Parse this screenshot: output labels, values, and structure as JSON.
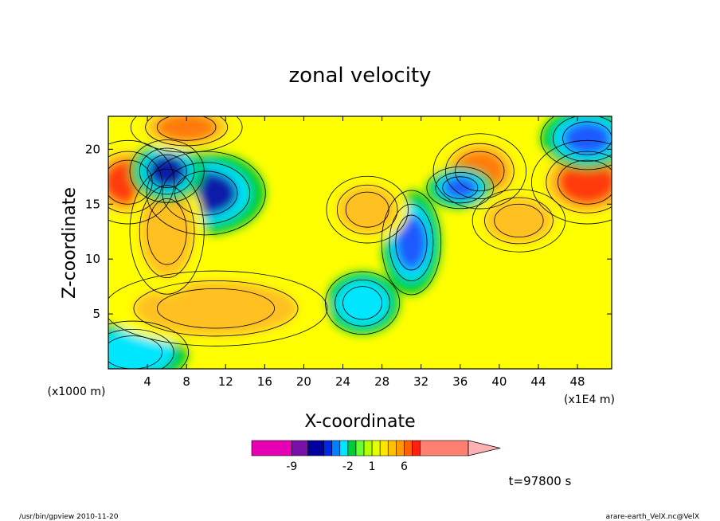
{
  "chart_data": {
    "type": "heatmap",
    "title": "zonal velocity",
    "xlabel": "X-coordinate",
    "ylabel": "Z-coordinate",
    "x_unit_label": "(x1E4 m)",
    "z_unit_label": "(x1000 m)",
    "xlim": [
      0,
      51.5
    ],
    "ylim": [
      0,
      23
    ],
    "x_ticks": [
      4,
      8,
      12,
      16,
      20,
      24,
      28,
      32,
      36,
      40,
      44,
      48
    ],
    "y_ticks": [
      5,
      10,
      15,
      20
    ],
    "time_label": "t=97800 s",
    "colorbar": {
      "tick_labels": [
        "-9",
        "-2",
        "1",
        "6"
      ],
      "levels": [
        -15,
        -9,
        -7,
        -5,
        -4,
        -3,
        -2,
        -1,
        0,
        1,
        2,
        3,
        4,
        6,
        8,
        15
      ],
      "colors": [
        "#e600b4",
        "#7a10a8",
        "#0000a0",
        "#0028e6",
        "#0080ff",
        "#00e6ff",
        "#00cc33",
        "#66ff33",
        "#b4ff00",
        "#e6ff00",
        "#ffe600",
        "#ffc000",
        "#ff9a00",
        "#ff6000",
        "#ff2010",
        "#ff8070",
        "#ffb0b0"
      ]
    },
    "field_colors": {
      "strong_negative": "#0a1ea8",
      "negative": "#1e5aff",
      "weak_negative": "#00e6ff",
      "near_zero_negative": "#00cc33",
      "near_zero_positive": "#ffff00",
      "positive": "#ffc020",
      "strong_positive": "#ff7a10",
      "max_positive": "#ff3a10"
    },
    "features": [
      {
        "x": 10,
        "z": 16,
        "u": -8,
        "extent_x": 3.2,
        "extent_z": 2.0
      },
      {
        "x": 31,
        "z": 11.5,
        "u": -5,
        "extent_x": 1.6,
        "extent_z": 2.5
      },
      {
        "x": 26,
        "z": 6,
        "u": -3,
        "extent_x": 2.0,
        "extent_z": 1.5
      },
      {
        "x": 2.5,
        "z": 1.5,
        "u": -3,
        "extent_x": 3.0,
        "extent_z": 1.5
      },
      {
        "x": 2,
        "z": 17,
        "u": 6,
        "extent_x": 2.5,
        "extent_z": 2.0
      },
      {
        "x": 49,
        "z": 17,
        "u": 6,
        "extent_x": 3.0,
        "extent_z": 2.0
      },
      {
        "x": 26.5,
        "z": 14.5,
        "u": 3,
        "extent_x": 2.2,
        "extent_z": 1.6
      },
      {
        "x": 11,
        "z": 5.5,
        "u": 3,
        "extent_x": 6.0,
        "extent_z": 1.8
      },
      {
        "x": 6,
        "z": 12.5,
        "u": 3,
        "extent_x": 2.0,
        "extent_z": 3.0
      },
      {
        "x": 38,
        "z": 18,
        "u": 4,
        "extent_x": 2.5,
        "extent_z": 1.8
      },
      {
        "x": 36,
        "z": 16.5,
        "u": -6,
        "extent_x": 1.8,
        "extent_z": 1.0
      },
      {
        "x": 6,
        "z": 18,
        "u": -7,
        "extent_x": 2.0,
        "extent_z": 1.5
      },
      {
        "x": 49,
        "z": 21,
        "u": -5,
        "extent_x": 2.5,
        "extent_z": 1.5
      },
      {
        "x": 8,
        "z": 22,
        "u": 5,
        "extent_x": 3.0,
        "extent_z": 1.2
      },
      {
        "x": 42,
        "z": 13.5,
        "u": 3,
        "extent_x": 2.5,
        "extent_z": 1.5
      }
    ]
  },
  "footer": {
    "left": "/usr/bin/gpview   2010-11-20",
    "right": "arare-earth_VelX.nc@VelX"
  }
}
